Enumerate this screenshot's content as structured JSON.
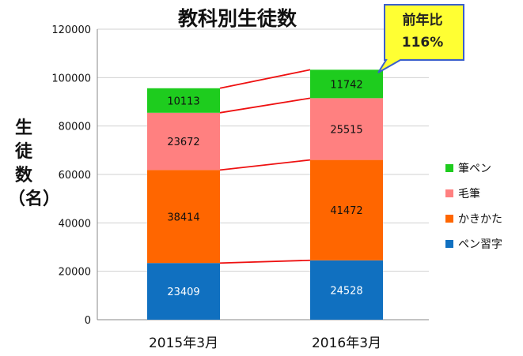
{
  "chart_data": {
    "type": "bar",
    "stacked": true,
    "title": "教科別生徒数",
    "ylabel": "生徒数（名）",
    "categories": [
      "2015年3月",
      "2016年3月"
    ],
    "ylim": [
      0,
      120000
    ],
    "yticks": [
      0,
      20000,
      40000,
      60000,
      80000,
      100000,
      120000
    ],
    "grid": true,
    "legend_position": "right",
    "series": [
      {
        "name": "ペン習字",
        "values": [
          23409,
          24528
        ],
        "color": "#1070C0",
        "label_color": "#ffffff"
      },
      {
        "name": "かきかた",
        "values": [
          38414,
          41472
        ],
        "color": "#FF6600",
        "label_color": "#111111"
      },
      {
        "name": "毛筆",
        "values": [
          23672,
          25515
        ],
        "color": "#FF8080",
        "label_color": "#111111"
      },
      {
        "name": "筆ペン",
        "values": [
          10113,
          11742
        ],
        "color": "#1ECC1E",
        "label_color": "#111111"
      }
    ],
    "connector_color": "#EE1111",
    "annotation": {
      "line1": "前年比",
      "line2": "116%",
      "fill": "#FFFF33",
      "border": "#3A5FCD"
    }
  }
}
